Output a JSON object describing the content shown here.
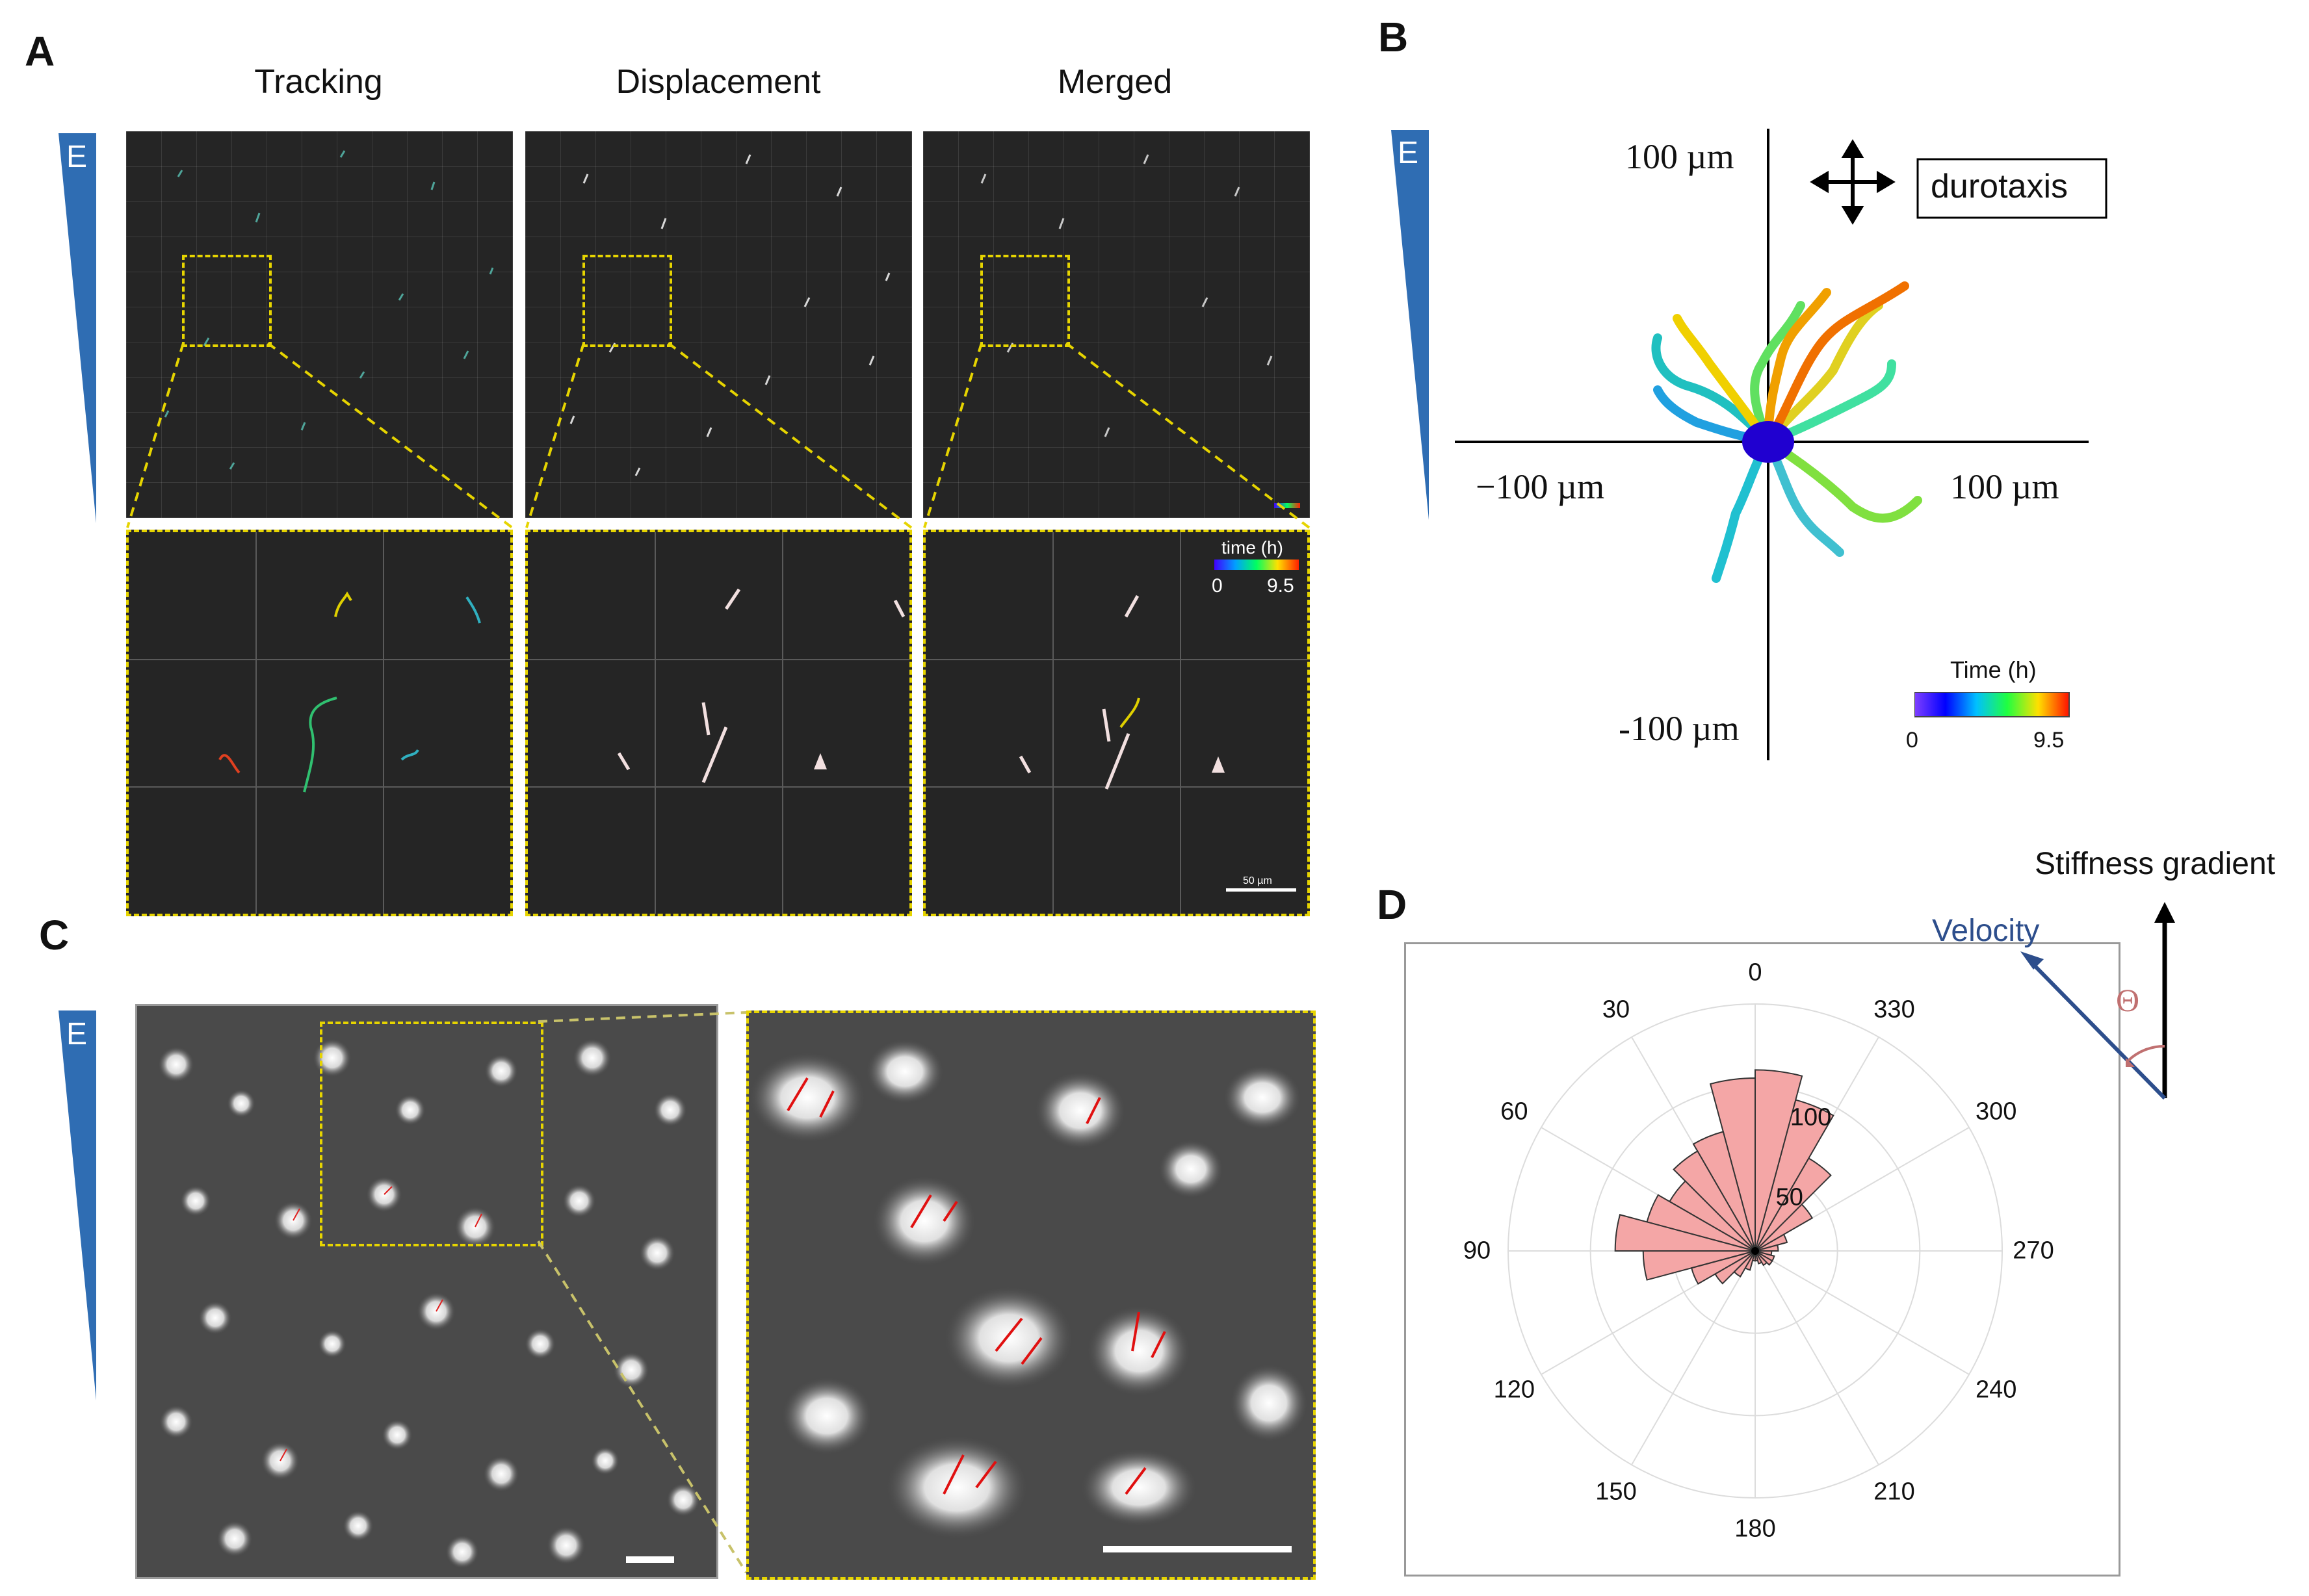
{
  "panels": {
    "a": {
      "letter": "A",
      "columns": [
        "Tracking",
        "Displacement",
        "Merged"
      ],
      "wedge_label": "E",
      "colorbar": {
        "title": "time (h)",
        "min": "0",
        "max": "9.5"
      },
      "scalebar_label": "50 µm"
    },
    "b": {
      "letter": "B",
      "wedge_label": "E",
      "label_y_pos": "100 µm",
      "label_y_neg": "-100 µm",
      "label_x_neg": "−100 µm",
      "label_x_pos": "100 µm",
      "legend_box": "durotaxis",
      "colorbar": {
        "title": "Time (h)",
        "min": "0",
        "max": "9.5"
      }
    },
    "c": {
      "letter": "C",
      "wedge_label": "E"
    },
    "d": {
      "letter": "D",
      "stiffness_label": "Stiffness gradient",
      "velocity_label": "Velocity",
      "theta_label": "Θ"
    }
  },
  "colors": {
    "wedge_blue": "#2f6db3",
    "dashed_yellow": "#e6d400",
    "rose_fill": "#f4a6a6",
    "velocity_blue": "#2d4e8c",
    "theta_red": "#c07070"
  },
  "chart_data": {
    "type": "polar-histogram",
    "angle_labels": [
      "0",
      "30",
      "60",
      "90",
      "120",
      "150",
      "180",
      "210",
      "240",
      "270",
      "300",
      "330"
    ],
    "radial_ticks": [
      50,
      100
    ],
    "rmax": 150,
    "bins_deg": [
      0,
      15,
      30,
      45,
      60,
      75,
      90,
      105,
      120,
      135,
      150,
      165,
      180,
      195,
      210,
      225,
      240,
      255,
      270,
      285,
      300,
      315,
      330,
      345
    ],
    "values": [
      105,
      75,
      70,
      60,
      68,
      85,
      68,
      40,
      28,
      18,
      12,
      6,
      6,
      8,
      10,
      12,
      12,
      10,
      14,
      20,
      40,
      65,
      95,
      110
    ]
  }
}
